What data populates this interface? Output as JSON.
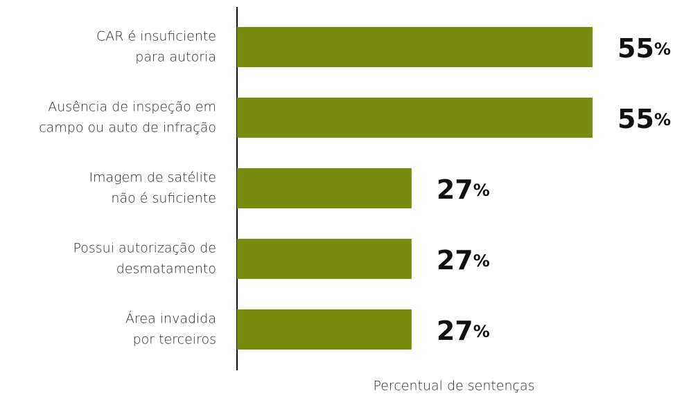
{
  "chart_data": {
    "type": "bar",
    "orientation": "horizontal",
    "categories": [
      [
        "CAR é insuficiente",
        "para autoria"
      ],
      [
        "Ausência de inspeção em",
        "campo ou auto de infração"
      ],
      [
        "Imagem de satélite",
        "não é suficiente"
      ],
      [
        "Possui autorização de",
        "desmatamento"
      ],
      [
        "Área invadida",
        "por terceiros"
      ]
    ],
    "values": [
      55,
      55,
      27,
      27,
      27
    ],
    "value_labels": [
      "55%",
      "55%",
      "27%",
      "27%",
      "27%"
    ],
    "color": "#7a8c0e",
    "xlim": [
      0,
      67
    ],
    "x_label": "Percentual de sentenças"
  }
}
